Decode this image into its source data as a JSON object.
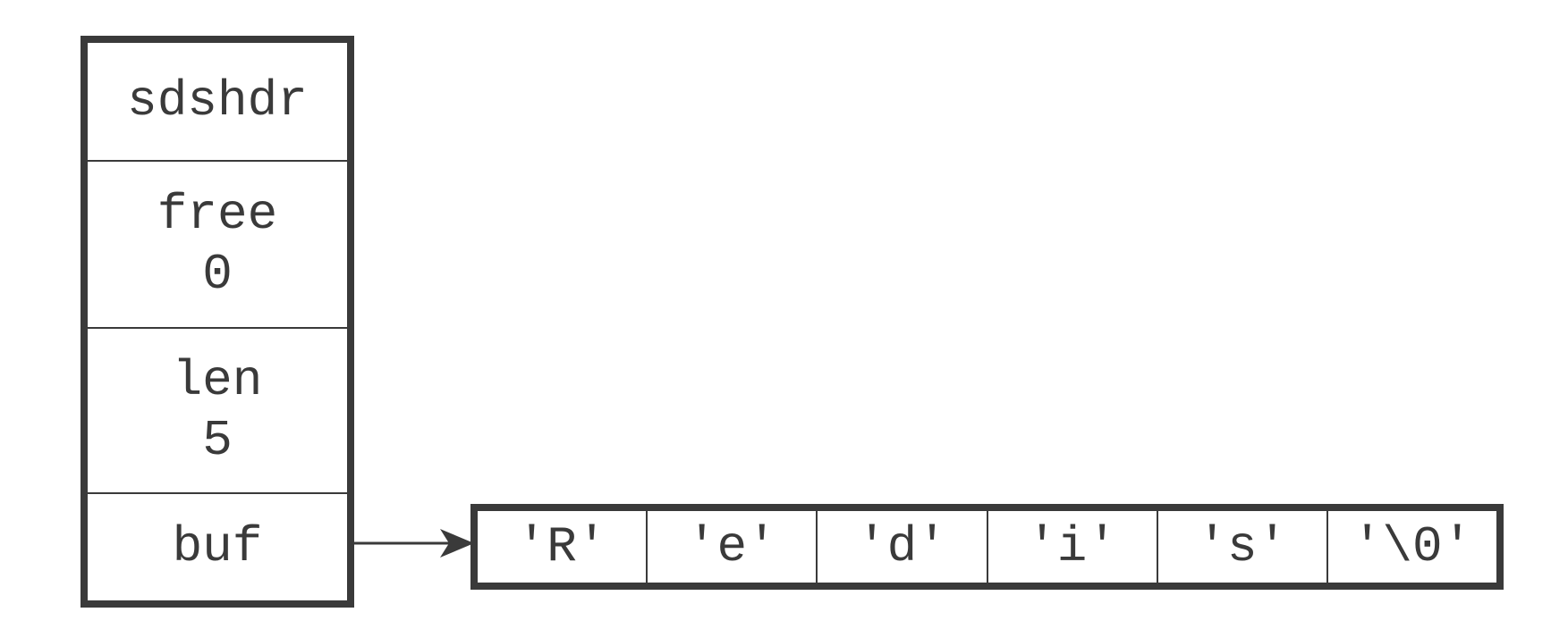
{
  "sdshdr": {
    "title": "sdshdr",
    "free": {
      "label": "free",
      "value": "0"
    },
    "len": {
      "label": "len",
      "value": "5"
    },
    "buf": {
      "label": "buf"
    }
  },
  "buffer": {
    "bytes": [
      "'R'",
      "'e'",
      "'d'",
      "'i'",
      "'s'",
      "'\\0'"
    ]
  }
}
